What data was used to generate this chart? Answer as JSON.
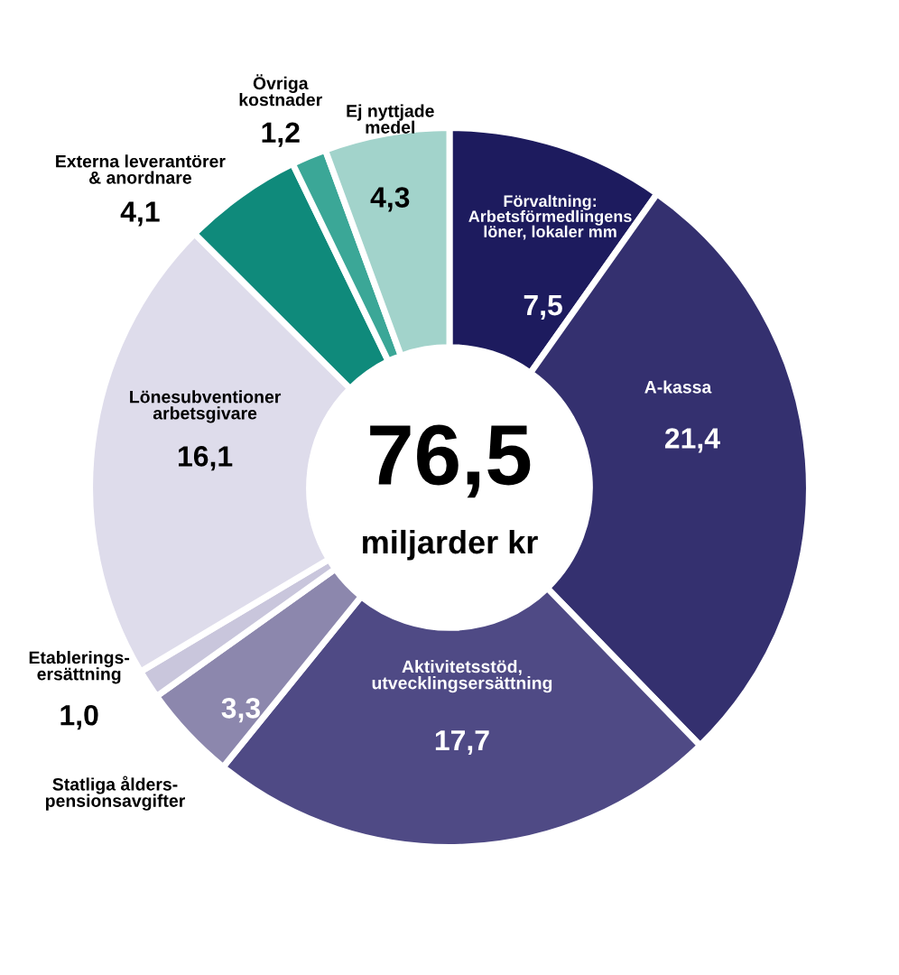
{
  "chart_data": {
    "type": "donut",
    "categories": [
      "Förvaltning:\nArbetsförmedlingens\nlöner, lokaler mm",
      "A-kassa",
      "Aktivitetsstöd,\nutvecklingsersättning",
      "Statliga ålders-\npensionsavgifter",
      "Etablerings-\nersättning",
      "Lönesubventioner\narbetsgivare",
      "Externa leverantörer\n& anordnare",
      "Övriga\nkostnader",
      "Ej nyttjade\nmedel"
    ],
    "values": [
      7.5,
      21.4,
      17.7,
      3.3,
      1.0,
      16.1,
      4.1,
      1.2,
      4.3
    ],
    "value_labels": [
      "7,5",
      "21,4",
      "17,7",
      "3,3",
      "1,0",
      "16,1",
      "4,1",
      "1,2",
      "4,3"
    ],
    "colors": [
      "#1d1b5e",
      "#34306f",
      "#4f4a85",
      "#8c87ad",
      "#c9c6dc",
      "#dedceb",
      "#0f8a7b",
      "#3ba797",
      "#a2d3cb"
    ],
    "annotations": [
      "76,5",
      "miljarder kr"
    ]
  }
}
